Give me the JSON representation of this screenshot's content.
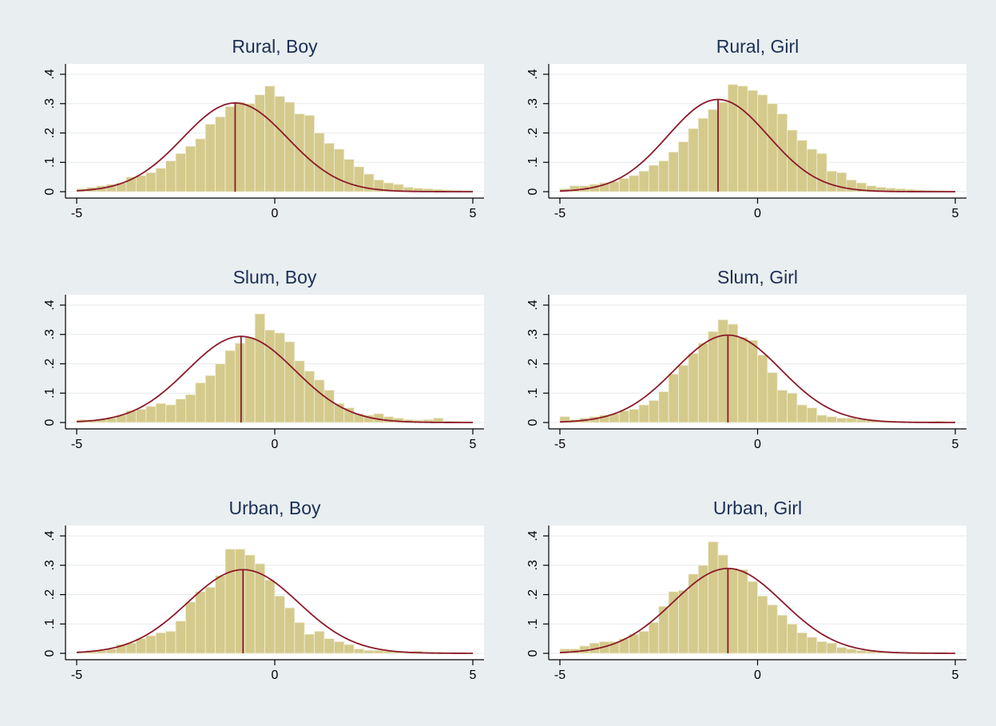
{
  "chart_data": {
    "type": "histogram",
    "layout": "3 rows x 2 columns",
    "x_ticks": [
      -5,
      0,
      5
    ],
    "x_tick_labels": [
      "-5",
      "0",
      "5"
    ],
    "y_ticks": [
      0,
      0.1,
      0.2,
      0.3,
      0.4
    ],
    "y_tick_labels": [
      "0",
      ".1",
      ".2",
      ".3",
      ".4"
    ],
    "xlim": [
      -5,
      5
    ],
    "ylim": [
      0,
      0.4
    ],
    "grid": "horizontal",
    "bar_color": "#d4ca8c",
    "curve_color": "#8b1a2b",
    "bin_width": 0.25,
    "panels": [
      {
        "title": "Rural, Boy",
        "mean": -1.0,
        "sd": 1.32,
        "bin_start": -5.0,
        "heights": [
          0.01,
          0.015,
          0.02,
          0.025,
          0.03,
          0.05,
          0.055,
          0.065,
          0.08,
          0.105,
          0.13,
          0.155,
          0.18,
          0.23,
          0.255,
          0.29,
          0.305,
          0.3,
          0.33,
          0.36,
          0.325,
          0.305,
          0.265,
          0.26,
          0.2,
          0.165,
          0.145,
          0.11,
          0.085,
          0.06,
          0.04,
          0.03,
          0.025,
          0.015,
          0.012,
          0.01,
          0.008,
          0.006,
          0.005,
          0.004
        ]
      },
      {
        "title": "Rural, Girl",
        "mean": -1.0,
        "sd": 1.27,
        "bin_start": -5.0,
        "heights": [
          0.01,
          0.02,
          0.02,
          0.025,
          0.03,
          0.035,
          0.045,
          0.055,
          0.07,
          0.09,
          0.105,
          0.135,
          0.17,
          0.215,
          0.25,
          0.28,
          0.305,
          0.365,
          0.36,
          0.345,
          0.33,
          0.3,
          0.265,
          0.21,
          0.175,
          0.145,
          0.13,
          0.07,
          0.065,
          0.04,
          0.03,
          0.02,
          0.015,
          0.012,
          0.01,
          0.008,
          0.006,
          0.005,
          0.004,
          0.003
        ]
      },
      {
        "title": "Slum, Boy",
        "mean": -0.85,
        "sd": 1.36,
        "bin_start": -5.0,
        "heights": [
          0.01,
          0.008,
          0.012,
          0.015,
          0.025,
          0.04,
          0.045,
          0.055,
          0.065,
          0.06,
          0.08,
          0.095,
          0.135,
          0.16,
          0.2,
          0.245,
          0.27,
          0.29,
          0.37,
          0.315,
          0.305,
          0.275,
          0.21,
          0.175,
          0.145,
          0.11,
          0.065,
          0.05,
          0.03,
          0.025,
          0.03,
          0.02,
          0.015,
          0.01,
          0.008,
          0.01,
          0.015,
          0.005,
          0.004,
          0.003
        ]
      },
      {
        "title": "Slum, Girl",
        "mean": -0.75,
        "sd": 1.34,
        "bin_start": -5.0,
        "heights": [
          0.02,
          0.01,
          0.015,
          0.02,
          0.025,
          0.03,
          0.04,
          0.045,
          0.06,
          0.075,
          0.105,
          0.165,
          0.195,
          0.235,
          0.27,
          0.31,
          0.35,
          0.335,
          0.29,
          0.28,
          0.23,
          0.17,
          0.11,
          0.1,
          0.06,
          0.05,
          0.025,
          0.02,
          0.015,
          0.015,
          0.01,
          0.008,
          0.006,
          0.005,
          0.004,
          0.003,
          0.003,
          0.004,
          0.005,
          0.003
        ]
      },
      {
        "title": "Urban, Boy",
        "mean": -0.8,
        "sd": 1.4,
        "bin_start": -5.0,
        "heights": [
          0.005,
          0.01,
          0.01,
          0.015,
          0.03,
          0.035,
          0.05,
          0.06,
          0.07,
          0.075,
          0.11,
          0.175,
          0.21,
          0.225,
          0.265,
          0.355,
          0.355,
          0.335,
          0.305,
          0.25,
          0.195,
          0.155,
          0.105,
          0.065,
          0.075,
          0.05,
          0.04,
          0.03,
          0.015,
          0.01,
          0.01,
          0.008,
          0.006,
          0.005,
          0.008,
          0.005,
          0.004,
          0.003,
          0.002,
          0.002
        ]
      },
      {
        "title": "Urban, Girl",
        "mean": -0.75,
        "sd": 1.38,
        "bin_start": -5.0,
        "heights": [
          0.015,
          0.015,
          0.025,
          0.035,
          0.04,
          0.04,
          0.05,
          0.065,
          0.075,
          0.105,
          0.16,
          0.21,
          0.215,
          0.27,
          0.3,
          0.38,
          0.335,
          0.29,
          0.285,
          0.245,
          0.195,
          0.165,
          0.13,
          0.1,
          0.07,
          0.055,
          0.04,
          0.035,
          0.02,
          0.015,
          0.01,
          0.008,
          0.006,
          0.005,
          0.005,
          0.004,
          0.003,
          0.003,
          0.003,
          0.002
        ]
      }
    ]
  }
}
